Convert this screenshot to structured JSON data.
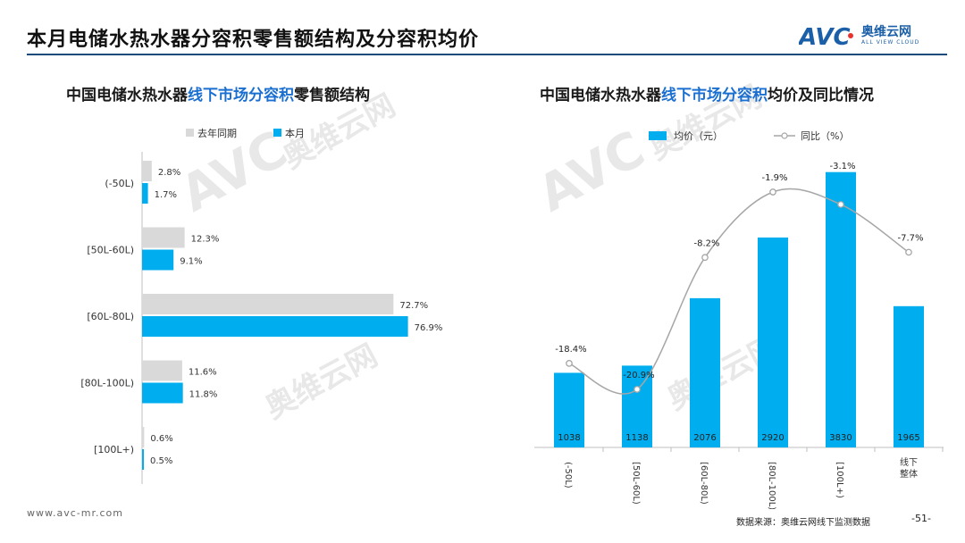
{
  "header": {
    "title": "本月电储水热水器分容积零售额结构及分容积均价",
    "logo_cn": "奥维云网",
    "logo_en": "ALL VIEW CLOUD",
    "logo_mark": "AVC"
  },
  "left": {
    "title_a": "中国电储水热水器",
    "title_hl": "线下市场分容积",
    "title_b": "零售额结构"
  },
  "right": {
    "title_a": "中国电储水热水器",
    "title_hl": "线下市场分容积",
    "title_b": "均价及同比情况"
  },
  "footer": {
    "url": "www.avc-mr.com",
    "source": "数据来源：奥维云网线下监测数据",
    "page": "-51-"
  },
  "colors": {
    "accent": "#00aeef",
    "gray": "#d9d9d9",
    "title_blue": "#1a6fd0",
    "line": "#a6a6a6"
  },
  "chart_data": [
    {
      "type": "bar",
      "orientation": "horizontal",
      "categories": [
        "(-50L)",
        "[50L-60L)",
        "[60L-80L)",
        "[80L-100L)",
        "[100L+)"
      ],
      "series": [
        {
          "name": "去年同期",
          "values": [
            2.8,
            12.3,
            72.7,
            11.6,
            0.6
          ],
          "labels": [
            "2.8%",
            "12.3%",
            "72.7%",
            "11.6%",
            "0.6%"
          ]
        },
        {
          "name": "本月",
          "values": [
            1.7,
            9.1,
            76.9,
            11.8,
            0.5
          ],
          "labels": [
            "1.7%",
            "9.1%",
            "76.9%",
            "11.8%",
            "0.5%"
          ]
        }
      ],
      "unit": "%",
      "legend": "top"
    },
    {
      "type": "bar+line",
      "categories": [
        "(-50L)",
        "[50L-60L)",
        "[60L-80L)",
        "[80L-100L)",
        "[100L+)",
        "线下整体"
      ],
      "series": [
        {
          "name": "均价（元）",
          "type": "bar",
          "values": [
            1038,
            1138,
            2076,
            2920,
            3830,
            1965
          ]
        },
        {
          "name": "同比（%）",
          "type": "line",
          "values": [
            -18.4,
            -20.9,
            -8.2,
            -1.9,
            -3.1,
            -7.7
          ],
          "labels": [
            "-18.4%",
            "-20.9%",
            "-8.2%",
            "-1.9%",
            "-3.1%",
            "-7.7%"
          ]
        }
      ],
      "legend": "top"
    }
  ]
}
